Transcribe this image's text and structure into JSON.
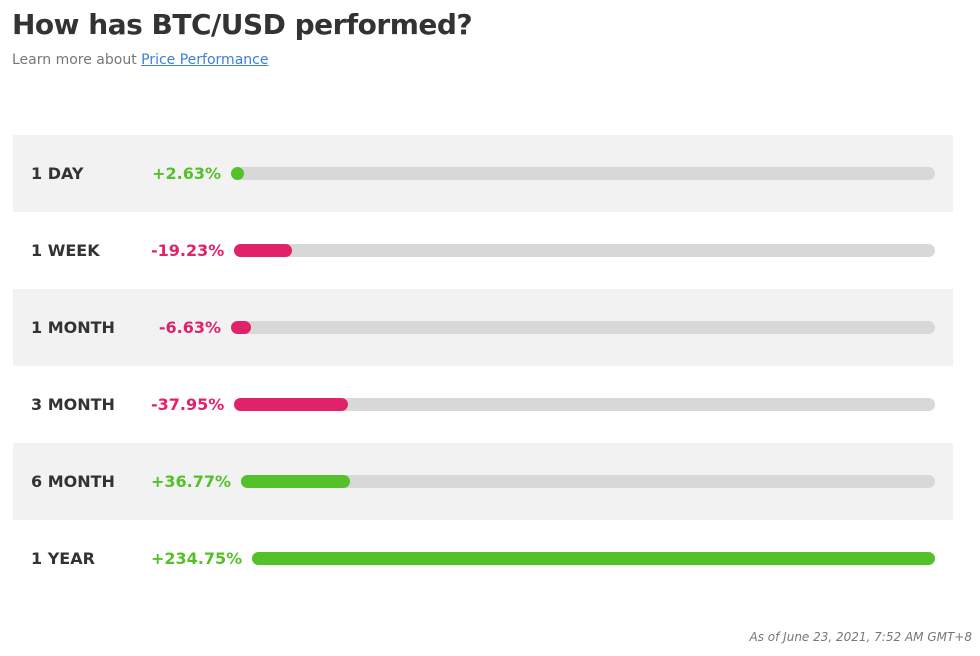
{
  "header": {
    "title": "How has BTC/USD performed?",
    "subtitle": "Learn more about",
    "link": "Price Performance"
  },
  "rows": [
    {
      "label": "1 DAY",
      "value": 2.63,
      "value_label": "+2.63%"
    },
    {
      "label": "1 WEEK",
      "value": -19.23,
      "value_label": "-19.23%"
    },
    {
      "label": "1 MONTH",
      "value": -6.63,
      "value_label": "-6.63%"
    },
    {
      "label": "3 MONTH",
      "value": -37.95,
      "value_label": "-37.95%"
    },
    {
      "label": "6 MONTH",
      "value": 36.77,
      "value_label": "+36.77%"
    },
    {
      "label": "1 YEAR",
      "value": 234.75,
      "value_label": "+234.75%"
    }
  ],
  "colors": {
    "positive": "#55c12a",
    "negative": "#e0226a"
  },
  "footer": "As of June 23, 2021, 7:52 AM GMT+8"
}
